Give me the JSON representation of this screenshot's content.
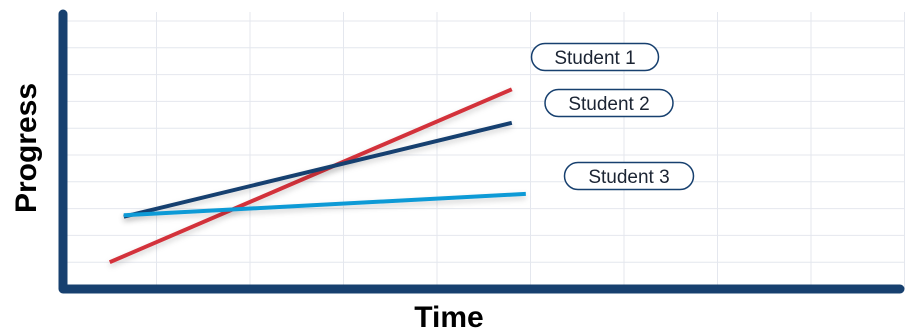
{
  "chart_data": {
    "type": "line",
    "xlabel": "Time",
    "ylabel": "Progress",
    "grid": true,
    "x_ticks_labeled": false,
    "y_ticks_labeled": false,
    "series": [
      {
        "name": "Student 1",
        "color": "#d3313a",
        "x": [
          0.5,
          4.8
        ],
        "y": [
          1.0,
          7.45
        ]
      },
      {
        "name": "Student 2",
        "color": "#17406f",
        "x": [
          0.65,
          4.8
        ],
        "y": [
          2.7,
          6.2
        ]
      },
      {
        "name": "Student 3",
        "color": "#0c9ad6",
        "x": [
          0.65,
          4.95
        ],
        "y": [
          2.75,
          3.55
        ]
      }
    ]
  },
  "colors": {
    "axis": "#17406f",
    "grid": "#e4e7ee",
    "pill_border": "#17406f"
  }
}
